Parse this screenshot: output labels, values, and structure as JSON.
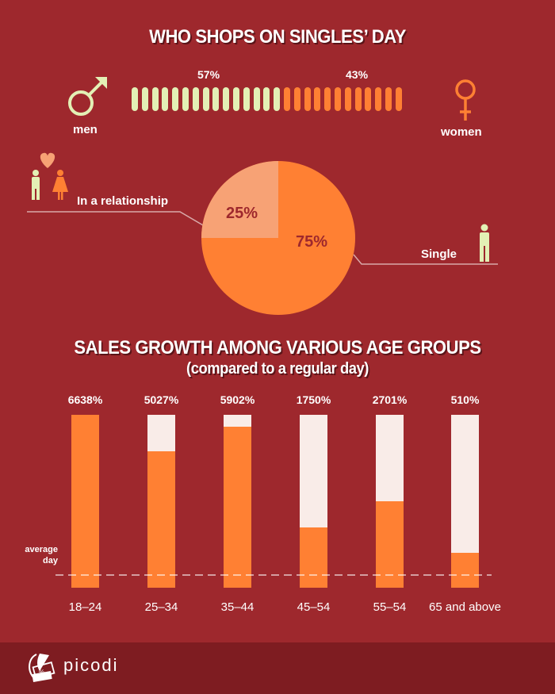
{
  "section1": {
    "title": "WHO SHOPS ON SINGLES’ DAY",
    "men_label": "men",
    "women_label": "women",
    "men_pct": "57%",
    "women_pct": "43%",
    "men_ticks": 15,
    "women_ticks": 12,
    "colors": {
      "men": "#e3f0b5",
      "women": "#ff8033"
    }
  },
  "section2": {
    "relationship_label": "In a relationship",
    "single_label": "Single",
    "relationship_pct": "25%",
    "single_pct": "75%",
    "colors": {
      "relationship": "#f7a275",
      "single": "#ff8033"
    }
  },
  "section3": {
    "title": "SALES GROWTH AMONG VARIOUS AGE GROUPS",
    "subtitle": "(compared to a regular day)",
    "average_label_1": "average",
    "average_label_2": "day"
  },
  "footer": {
    "brand": "picodi"
  },
  "chart_data": [
    {
      "type": "bar",
      "title": "WHO SHOPS ON SINGLES’ DAY",
      "categories": [
        "men",
        "women"
      ],
      "values": [
        57,
        43
      ],
      "unit": "%"
    },
    {
      "type": "pie",
      "categories": [
        "In a relationship",
        "Single"
      ],
      "values": [
        25,
        75
      ],
      "unit": "%"
    },
    {
      "type": "bar",
      "title": "SALES GROWTH AMONG VARIOUS AGE GROUPS",
      "subtitle": "(compared to a regular day)",
      "categories": [
        "18–24",
        "25–34",
        "35–44",
        "45–54",
        "55–54",
        "65 and above"
      ],
      "values": [
        6638,
        5027,
        5902,
        1750,
        2701,
        510
      ],
      "labels": [
        "6638%",
        "5027%",
        "5902%",
        "1750%",
        "2701%",
        "510%"
      ],
      "fill_fraction": [
        1.0,
        0.79,
        0.93,
        0.35,
        0.5,
        0.2
      ],
      "annotation": "average day (dashed line)",
      "unit": "%"
    }
  ]
}
